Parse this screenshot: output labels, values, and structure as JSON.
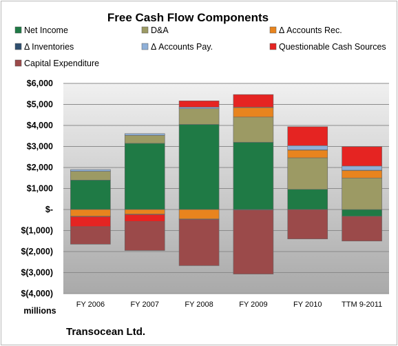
{
  "chart_data": {
    "type": "bar",
    "stacked": true,
    "title": "Free Cash Flow Components",
    "units_label": "millions",
    "company": "Transocean Ltd.",
    "categories": [
      "FY 2006",
      "FY 2007",
      "FY 2008",
      "FY 2009",
      "FY 2010",
      "TTM 9-2011"
    ],
    "ylim": [
      -4000,
      6000
    ],
    "yticks": [
      {
        "value": 6000,
        "label": "$6,000"
      },
      {
        "value": 5000,
        "label": "$5,000"
      },
      {
        "value": 4000,
        "label": "$4,000"
      },
      {
        "value": 3000,
        "label": "$3,000"
      },
      {
        "value": 2000,
        "label": "$2,000"
      },
      {
        "value": 1000,
        "label": "$1,000"
      },
      {
        "value": 0,
        "label": "$-"
      },
      {
        "value": -1000,
        "label": "$(1,000)"
      },
      {
        "value": -2000,
        "label": "$(2,000)"
      },
      {
        "value": -3000,
        "label": "$(3,000)"
      },
      {
        "value": -4000,
        "label": "$(4,000)"
      }
    ],
    "grid": true,
    "legend_position": "top",
    "series": [
      {
        "name": "Net Income",
        "color": "#1f7a45",
        "values": [
          1400,
          3150,
          4050,
          3200,
          960,
          -320
        ]
      },
      {
        "name": "D&A",
        "color": "#9c9a64",
        "values": [
          420,
          380,
          750,
          1200,
          1500,
          1500
        ]
      },
      {
        "name": "Δ Accounts Rec.",
        "color": "#e8841e",
        "values": [
          -320,
          -220,
          -450,
          450,
          370,
          360
        ]
      },
      {
        "name": "Δ Inventories",
        "color": "#2f4f6f",
        "values": [
          -20,
          -20,
          -20,
          -20,
          10,
          10
        ]
      },
      {
        "name": "Δ Accounts Pay.",
        "color": "#8fb0d8",
        "values": [
          80,
          80,
          70,
          20,
          200,
          200
        ]
      },
      {
        "name": "Questionable Cash Sources",
        "color": "#e52422",
        "values": [
          -480,
          -340,
          300,
          600,
          900,
          920
        ]
      },
      {
        "name": "Capital Expenditure",
        "color": "#9b4a4a",
        "values": [
          -830,
          -1370,
          -2200,
          -3050,
          -1400,
          -1180
        ]
      }
    ]
  }
}
